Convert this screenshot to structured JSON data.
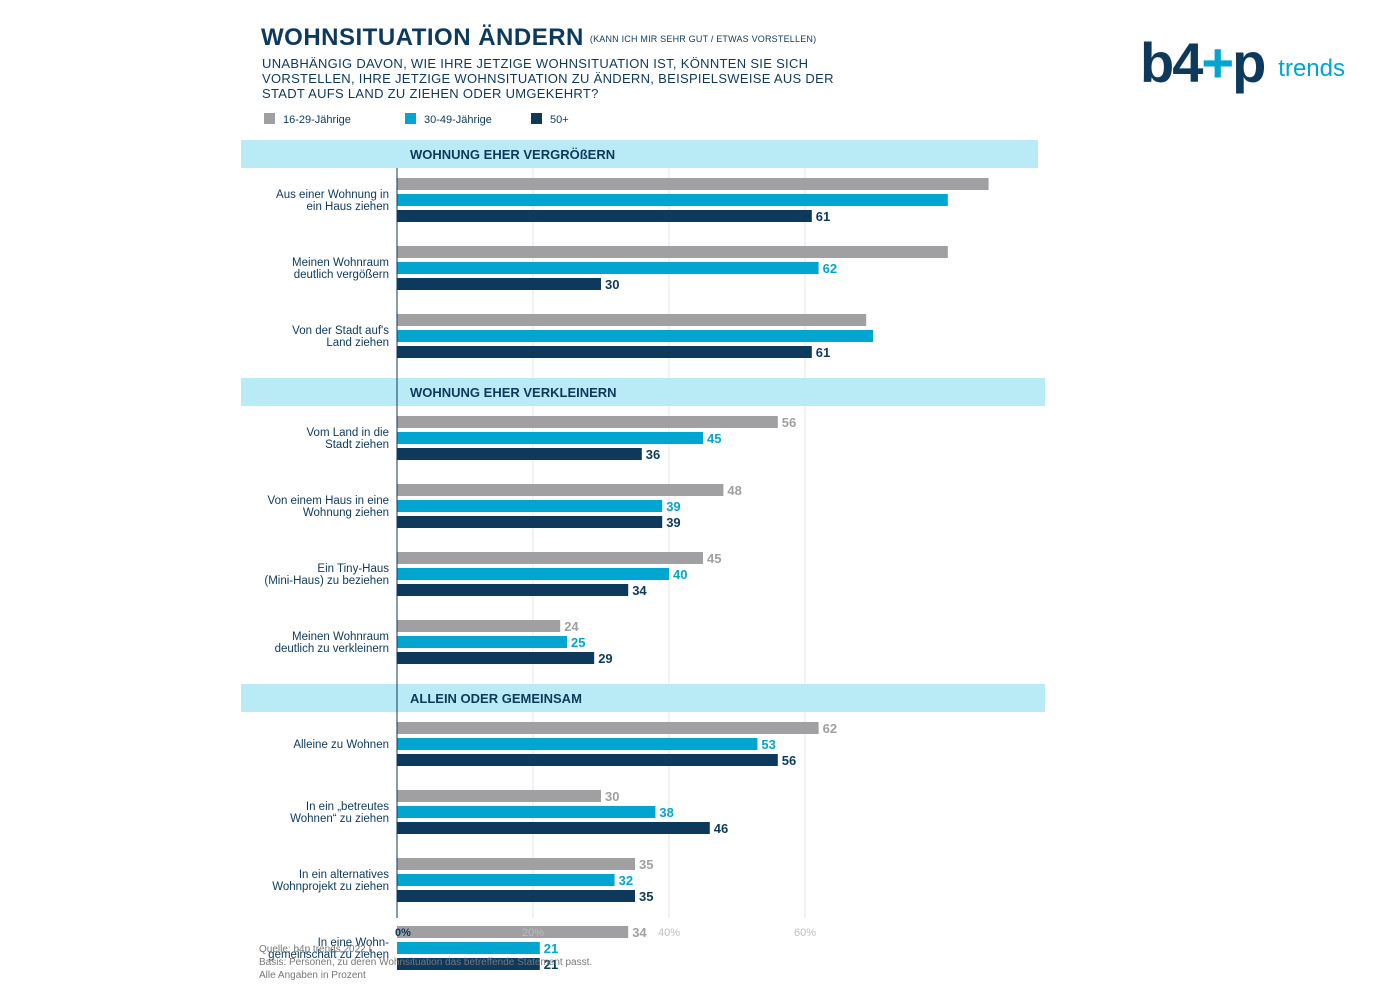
{
  "title": "WOHNSITUATION ÄNDERN",
  "title_note": "(KANN ICH MIR SEHR GUT / ETWAS VORSTELLEN)",
  "question": "UNABHÄNGIG DAVON, WIE IHRE JETZIGE WOHNSITUATION IST, KÖNNTEN SIE SICH VORSTELLEN, IHRE JETZIGE WOHNSITUATION ZU ÄNDERN, BEISPIELSWEISE AUS DER STADT AUFS LAND ZU ZIEHEN ODER UMGEKEHRT?",
  "logo": {
    "brand_left": "b4",
    "brand_plus": "+",
    "brand_right": "p",
    "suffix": "trends"
  },
  "legend": [
    {
      "label": "16-29-Jährige",
      "color": "#a0a0a2"
    },
    {
      "label": "30-49-Jährige",
      "color": "#00a6cf"
    },
    {
      "label": "50+",
      "color": "#0d3a5c"
    }
  ],
  "footnote": [
    "Quelle: b4p trends 2022 I",
    "Basis: Personen, zu deren Wohnsituation das betreffende Statement passt.",
    "Alle Angaben in Prozent"
  ],
  "chart_data": {
    "type": "bar",
    "orientation": "horizontal",
    "x_ticks": [
      "0%",
      "20%",
      "40%",
      "60%"
    ],
    "xlim": [
      0,
      100
    ],
    "grid": true,
    "series_names": [
      "16-29-Jährige",
      "30-49-Jährige",
      "50+"
    ],
    "series_colors": [
      "#a0a0a2",
      "#00a6cf",
      "#0d3a5c"
    ],
    "sections": [
      {
        "title": "WOHNUNG EHER VERGRÖßERN",
        "categories": [
          {
            "label": [
              "Aus einer Wohnung in",
              "ein Haus ziehen"
            ],
            "values": [
              87,
              81,
              61
            ],
            "labels": [
              "",
              "",
              "61"
            ]
          },
          {
            "label": [
              "Meinen Wohnraum",
              "deutlich vergößern"
            ],
            "values": [
              81,
              62,
              30
            ],
            "labels": [
              "",
              "62",
              "30"
            ]
          },
          {
            "label": [
              "Von der Stadt auf's",
              "Land ziehen"
            ],
            "values": [
              69,
              70,
              61
            ],
            "labels": [
              "",
              "",
              "61"
            ]
          }
        ]
      },
      {
        "title": "WOHNUNG EHER VERKLEINERN",
        "categories": [
          {
            "label": [
              "Vom Land in die",
              "Stadt ziehen"
            ],
            "values": [
              56,
              45,
              36
            ],
            "labels": [
              "56",
              "45",
              "36"
            ]
          },
          {
            "label": [
              "Von einem Haus in eine",
              "Wohnung ziehen"
            ],
            "values": [
              48,
              39,
              39
            ],
            "labels": [
              "48",
              "39",
              "39"
            ]
          },
          {
            "label": [
              "Ein Tiny-Haus",
              "(Mini-Haus) zu beziehen"
            ],
            "values": [
              45,
              40,
              34
            ],
            "labels": [
              "45",
              "40",
              "34"
            ]
          },
          {
            "label": [
              "Meinen Wohnraum",
              "deutlich zu verkleinern"
            ],
            "values": [
              24,
              25,
              29
            ],
            "labels": [
              "24",
              "25",
              "29"
            ]
          }
        ]
      },
      {
        "title": "ALLEIN ODER GEMEINSAM",
        "categories": [
          {
            "label": [
              "Alleine zu Wohnen"
            ],
            "values": [
              62,
              53,
              56
            ],
            "labels": [
              "62",
              "53",
              "56"
            ]
          },
          {
            "label": [
              "In ein „betreutes",
              "Wohnen“ zu ziehen"
            ],
            "values": [
              30,
              38,
              46
            ],
            "labels": [
              "30",
              "38",
              "46"
            ]
          },
          {
            "label": [
              "In ein alternatives",
              "Wohnprojekt zu ziehen"
            ],
            "values": [
              35,
              32,
              35
            ],
            "labels": [
              "35",
              "32",
              "35"
            ]
          },
          {
            "label": [
              "In eine Wohn-",
              "gemeinschaft zu ziehen"
            ],
            "values": [
              34,
              21,
              21
            ],
            "labels": [
              "34",
              "21",
              "21"
            ]
          }
        ]
      }
    ]
  }
}
